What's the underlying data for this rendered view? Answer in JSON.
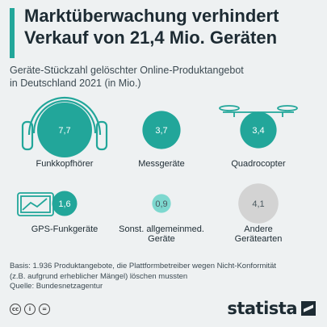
{
  "header": {
    "title_line1": "Marktüberwachung verhindert",
    "title_line2": "Verkauf von 21,4 Mio. Geräten",
    "subtitle_line1": "Geräte-Stückzahl gelöschter Online-Produktangebot",
    "subtitle_line2": "in Deutschland 2021 (in Mio.)"
  },
  "chart_data": {
    "type": "bubble",
    "title": "Marktüberwachung verhindert Verkauf von 21,4 Mio. Geräten",
    "subtitle": "Geräte-Stückzahl gelöschter Online-Produktangebot in Deutschland 2021 (in Mio.)",
    "unit": "Mio.",
    "categories": [
      {
        "label_lines": [
          "Funkkopfhörer"
        ],
        "value": 7.7,
        "value_label": "7,7",
        "color": "#22a69a",
        "icon": "headphones-icon"
      },
      {
        "label_lines": [
          "Messgeräte"
        ],
        "value": 3.7,
        "value_label": "3,7",
        "color": "#22a69a",
        "icon": ""
      },
      {
        "label_lines": [
          "Quadrocopter"
        ],
        "value": 3.4,
        "value_label": "3,4",
        "color": "#22a69a",
        "icon": "drone-icon"
      },
      {
        "label_lines": [
          "GPS-Funkgeräte"
        ],
        "value": 1.6,
        "value_label": "1,6",
        "color": "#22a69a",
        "icon": "gps-device-icon"
      },
      {
        "label_lines": [
          "Sonst. allgemeinmed.",
          "Geräte"
        ],
        "value": 0.9,
        "value_label": "0,9",
        "color": "#7dd8cf",
        "icon": ""
      },
      {
        "label_lines": [
          "Andere",
          "Gerätearten"
        ],
        "value": 4.1,
        "value_label": "4,1",
        "color": "#d3d3d3",
        "icon": ""
      }
    ]
  },
  "footer": {
    "note_line1": "Basis: 1.936 Produktangebote, die Plattformbetreiber wegen Nicht-Konformität",
    "note_line2": "(z.B. aufgrund erheblicher Mängel) löschen mussten",
    "source": "Quelle: Bundesnetzagentur"
  },
  "license_icons": [
    "cc",
    "i",
    "="
  ],
  "brand": {
    "name": "statista"
  }
}
